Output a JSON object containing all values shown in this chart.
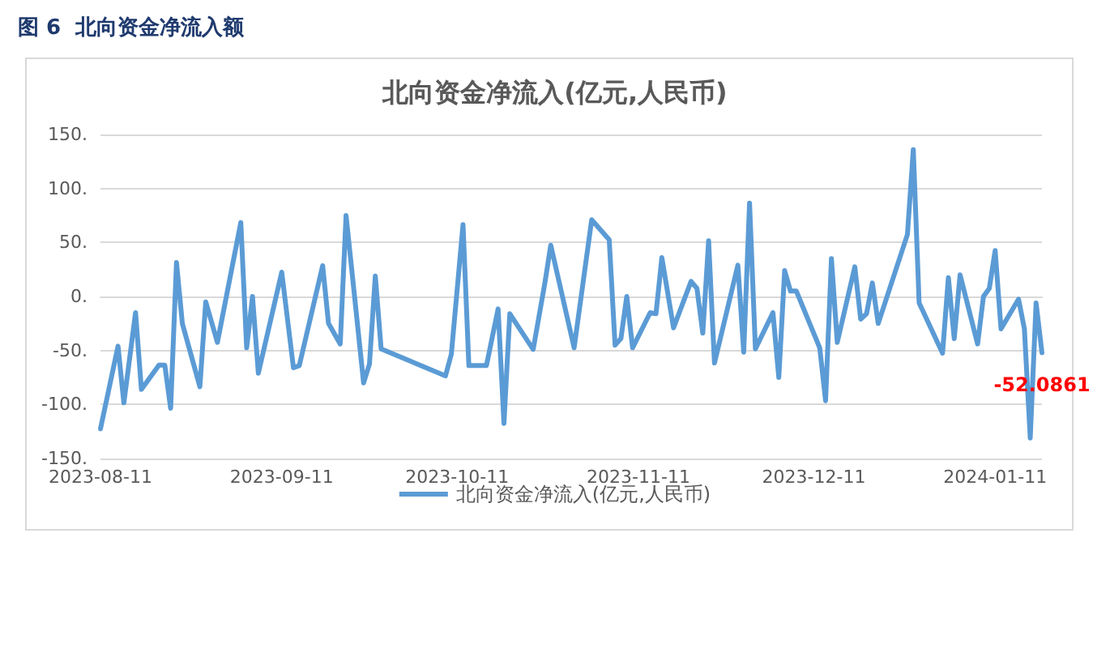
{
  "chart_data": {
    "type": "line",
    "title": "图 6  北向资金净流入额",
    "subtitle": "北向资金净流入(亿元,人民币)",
    "x": [
      "2023-08-11",
      "2023-08-14",
      "2023-08-15",
      "2023-08-17",
      "2023-08-18",
      "2023-08-21",
      "2023-08-22",
      "2023-08-23",
      "2023-08-24",
      "2023-08-25",
      "2023-08-28",
      "2023-08-29",
      "2023-08-31",
      "2023-09-04",
      "2023-09-05",
      "2023-09-06",
      "2023-09-07",
      "2023-09-11",
      "2023-09-13",
      "2023-09-14",
      "2023-09-18",
      "2023-09-19",
      "2023-09-21",
      "2023-09-22",
      "2023-09-25",
      "2023-09-26",
      "2023-09-27",
      "2023-09-28",
      "2023-10-09",
      "2023-10-10",
      "2023-10-12",
      "2023-10-13",
      "2023-10-16",
      "2023-10-18",
      "2023-10-19",
      "2023-10-20",
      "2023-10-24",
      "2023-10-26",
      "2023-10-27",
      "2023-10-31",
      "2023-11-03",
      "2023-11-06",
      "2023-11-07",
      "2023-11-08",
      "2023-11-09",
      "2023-11-10",
      "2023-11-13",
      "2023-11-14",
      "2023-11-15",
      "2023-11-17",
      "2023-11-20",
      "2023-11-21",
      "2023-11-22",
      "2023-11-23",
      "2023-11-24",
      "2023-11-28",
      "2023-11-29",
      "2023-11-30",
      "2023-12-01",
      "2023-12-04",
      "2023-12-05",
      "2023-12-06",
      "2023-12-07",
      "2023-12-08",
      "2023-12-12",
      "2023-12-13",
      "2023-12-14",
      "2023-12-15",
      "2023-12-18",
      "2023-12-19",
      "2023-12-20",
      "2023-12-21",
      "2023-12-22",
      "2023-12-27",
      "2023-12-28",
      "2023-12-29",
      "2024-01-02",
      "2024-01-03",
      "2024-01-04",
      "2024-01-05",
      "2024-01-08",
      "2024-01-09",
      "2024-01-10",
      "2024-01-11",
      "2024-01-12",
      "2024-01-15",
      "2024-01-16",
      "2024-01-17",
      "2024-01-18",
      "2024-01-19"
    ],
    "series": [
      {
        "name": "北向资金净流入(亿元,人民币)",
        "color": "#5b9bd5",
        "values": [
          -122.5,
          -46,
          -98.5,
          -15,
          -86,
          -63.5,
          -63.5,
          -103.5,
          31.5,
          -25,
          -83.5,
          -5,
          -42.5,
          68.5,
          -47.5,
          0,
          -71,
          22.5,
          -66,
          -64,
          28.5,
          -25,
          -44,
          75,
          -80,
          -62.5,
          19,
          -48.5,
          -73.5,
          -53.5,
          66.5,
          -64,
          -64,
          -11.5,
          -117.5,
          -16,
          -49,
          12.5,
          47.5,
          -47.5,
          71,
          52.5,
          -45,
          -39,
          0,
          -47.5,
          -15,
          -16,
          36,
          -29,
          14,
          7.5,
          -34,
          51.5,
          -61.5,
          29,
          -51.5,
          86.5,
          -48.5,
          -15,
          -75,
          24,
          5,
          5,
          -47.5,
          -96.5,
          35,
          -42.5,
          27.5,
          -21,
          -16,
          12.5,
          -25,
          57.5,
          136,
          -6,
          -52.5,
          17.5,
          -39,
          20,
          -44,
          0,
          7.5,
          42.5,
          -30,
          -2.5,
          -30,
          -131,
          -6,
          -52.0861
        ],
        "value_labels": [
          null,
          null,
          null,
          null,
          null,
          null,
          null,
          null,
          null,
          null,
          null,
          null,
          null,
          null,
          null,
          null,
          null,
          null,
          null,
          null,
          null,
          null,
          null,
          null,
          null,
          null,
          null,
          null,
          null,
          null,
          null,
          null,
          null,
          null,
          null,
          null,
          null,
          null,
          null,
          null,
          null,
          null,
          null,
          null,
          null,
          null,
          null,
          null,
          null,
          null,
          null,
          null,
          null,
          null,
          null,
          null,
          null,
          null,
          null,
          null,
          null,
          null,
          null,
          null,
          null,
          null,
          null,
          null,
          null,
          null,
          null,
          null,
          null,
          null,
          null,
          null,
          null,
          null,
          null,
          null,
          null,
          null,
          null,
          null,
          null,
          null,
          null,
          null,
          null,
          "-52.0861"
        ]
      }
    ],
    "xlim": [
      "2023-08-11",
      "2024-01-19"
    ],
    "xticks": [
      "2023-08-11",
      "2023-09-11",
      "2023-10-11",
      "2023-11-11",
      "2023-12-11",
      "2024-01-11"
    ],
    "ylim": [
      -150,
      150
    ],
    "yticks": [
      {
        "value": -150,
        "label": "-150."
      },
      {
        "value": -100,
        "label": "-100."
      },
      {
        "value": -50,
        "label": "-50."
      },
      {
        "value": 0,
        "label": "0."
      },
      {
        "value": 50,
        "label": "50."
      },
      {
        "value": 100,
        "label": "100."
      },
      {
        "value": 150,
        "label": "150."
      }
    ],
    "grid": "y",
    "legend": "bottom",
    "marker": "none",
    "line_style": "solid"
  }
}
